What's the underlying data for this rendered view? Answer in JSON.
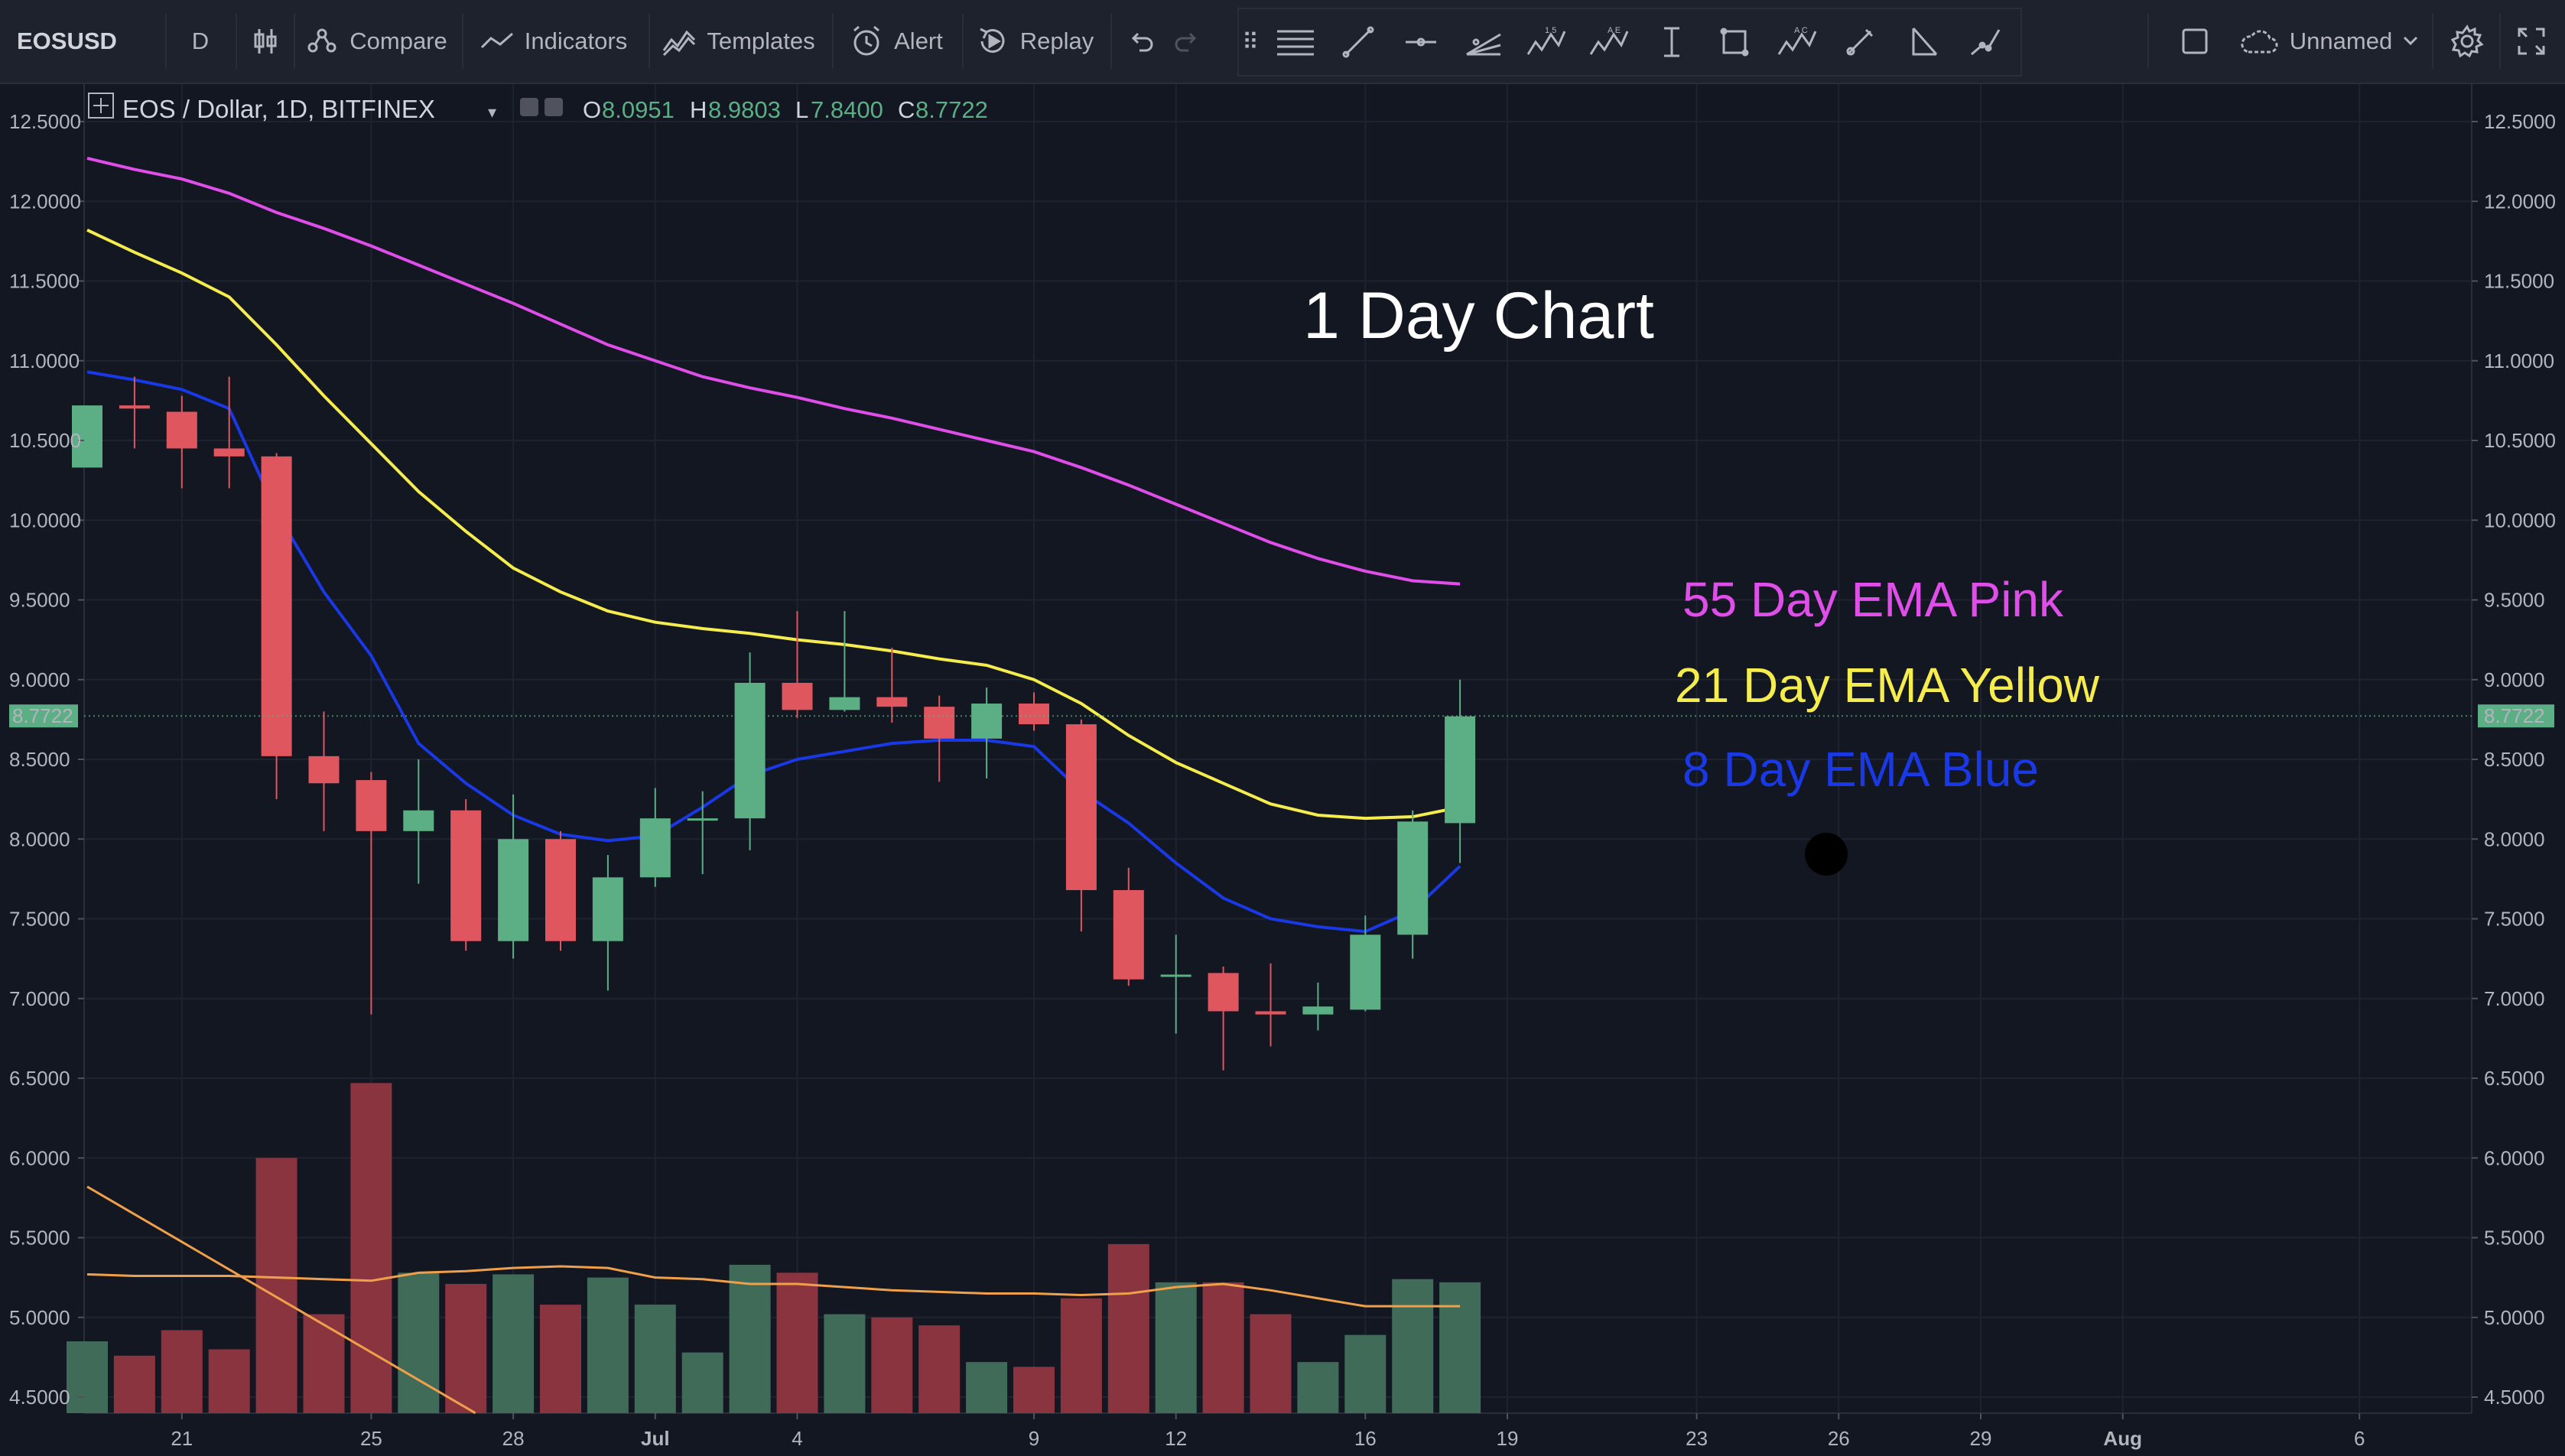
{
  "toolbar": {
    "symbol": "EOSUSD",
    "interval": "D",
    "compare_label": "Compare",
    "indicators_label": "Indicators",
    "templates_label": "Templates",
    "alert_label": "Alert",
    "replay_label": "Replay",
    "layout_name": "Unnamed"
  },
  "legend": {
    "symbol_text": "EOS / Dollar, 1D, BITFINEX",
    "open_label": "O",
    "open_value": "8.0951",
    "high_label": "H",
    "high_value": "8.9803",
    "low_label": "L",
    "low_value": "7.8400",
    "close_label": "C",
    "close_value": "8.7722"
  },
  "colors": {
    "up": "#5cae84",
    "down": "#e0565f",
    "vol_up": "#3f6b58",
    "vol_down": "#8a3440",
    "ema8": "#1a39e6",
    "ema21": "#f5ec4d",
    "ema55": "#df4ee8",
    "vol_ma": "#f0a04a",
    "price_tag": "#5cae84"
  },
  "annotations": {
    "title": "1 Day Chart",
    "ema55": "55 Day EMA Pink",
    "ema21": "21 Day EMA Yellow",
    "ema8": "8 Day EMA Blue"
  },
  "chart_data": {
    "type": "candlestick",
    "title": "1 Day Chart",
    "ylim": [
      4.4,
      12.7
    ],
    "y_ticks": [
      "12.5000",
      "12.0000",
      "11.5000",
      "11.0000",
      "10.5000",
      "10.0000",
      "9.5000",
      "9.0000",
      "8.5000",
      "8.0000",
      "7.5000",
      "7.0000",
      "6.5000",
      "6.0000",
      "5.5000",
      "5.0000",
      "4.5000"
    ],
    "current_price": "8.7722",
    "x_tick_labels": [
      {
        "label": "21",
        "day": 2
      },
      {
        "label": "25",
        "day": 6
      },
      {
        "label": "28",
        "day": 9
      },
      {
        "label": "Jul",
        "day": 12
      },
      {
        "label": "4",
        "day": 15
      },
      {
        "label": "9",
        "day": 20
      },
      {
        "label": "12",
        "day": 23
      },
      {
        "label": "16",
        "day": 27
      },
      {
        "label": "19",
        "day": 30
      },
      {
        "label": "23",
        "day": 34
      },
      {
        "label": "26",
        "day": 37
      },
      {
        "label": "29",
        "day": 40
      },
      {
        "label": "Aug",
        "day": 43
      },
      {
        "label": "6",
        "day": 48
      }
    ],
    "candles": [
      {
        "day": 0,
        "o": 10.33,
        "h": 10.72,
        "l": 10.33,
        "c": 10.72
      },
      {
        "day": 1,
        "o": 10.72,
        "h": 10.9,
        "l": 10.45,
        "c": 10.7
      },
      {
        "day": 2,
        "o": 10.68,
        "h": 10.78,
        "l": 10.2,
        "c": 10.45
      },
      {
        "day": 3,
        "o": 10.45,
        "h": 10.9,
        "l": 10.2,
        "c": 10.4
      },
      {
        "day": 4,
        "o": 10.4,
        "h": 10.42,
        "l": 8.25,
        "c": 8.52
      },
      {
        "day": 5,
        "o": 8.52,
        "h": 8.8,
        "l": 8.05,
        "c": 8.35
      },
      {
        "day": 6,
        "o": 8.37,
        "h": 8.42,
        "l": 6.9,
        "c": 8.05
      },
      {
        "day": 7,
        "o": 8.05,
        "h": 8.5,
        "l": 7.72,
        "c": 8.18
      },
      {
        "day": 8,
        "o": 8.18,
        "h": 8.25,
        "l": 7.3,
        "c": 7.36
      },
      {
        "day": 9,
        "o": 7.36,
        "h": 8.28,
        "l": 7.25,
        "c": 8.0
      },
      {
        "day": 10,
        "o": 8.0,
        "h": 8.05,
        "l": 7.3,
        "c": 7.36
      },
      {
        "day": 11,
        "o": 7.36,
        "h": 7.9,
        "l": 7.05,
        "c": 7.76
      },
      {
        "day": 12,
        "o": 7.76,
        "h": 8.32,
        "l": 7.7,
        "c": 8.13
      },
      {
        "day": 13,
        "o": 8.13,
        "h": 8.3,
        "l": 7.78,
        "c": 8.13
      },
      {
        "day": 14,
        "o": 8.13,
        "h": 9.17,
        "l": 7.93,
        "c": 8.98
      },
      {
        "day": 15,
        "o": 8.98,
        "h": 9.43,
        "l": 8.76,
        "c": 8.81
      },
      {
        "day": 16,
        "o": 8.81,
        "h": 9.43,
        "l": 8.8,
        "c": 8.89
      },
      {
        "day": 17,
        "o": 8.89,
        "h": 9.2,
        "l": 8.73,
        "c": 8.83
      },
      {
        "day": 18,
        "o": 8.83,
        "h": 8.9,
        "l": 8.36,
        "c": 8.63
      },
      {
        "day": 19,
        "o": 8.63,
        "h": 8.95,
        "l": 8.38,
        "c": 8.85
      },
      {
        "day": 20,
        "o": 8.85,
        "h": 8.92,
        "l": 8.68,
        "c": 8.72
      },
      {
        "day": 21,
        "o": 8.72,
        "h": 8.75,
        "l": 7.42,
        "c": 7.68
      },
      {
        "day": 22,
        "o": 7.68,
        "h": 7.82,
        "l": 7.08,
        "c": 7.12
      },
      {
        "day": 23,
        "o": 7.14,
        "h": 7.4,
        "l": 6.78,
        "c": 7.15
      },
      {
        "day": 24,
        "o": 7.16,
        "h": 7.2,
        "l": 6.55,
        "c": 6.92
      },
      {
        "day": 25,
        "o": 6.92,
        "h": 7.22,
        "l": 6.7,
        "c": 6.9
      },
      {
        "day": 26,
        "o": 6.9,
        "h": 7.1,
        "l": 6.8,
        "c": 6.95
      },
      {
        "day": 27,
        "o": 6.93,
        "h": 7.52,
        "l": 6.92,
        "c": 7.4
      },
      {
        "day": 28,
        "o": 7.4,
        "h": 8.18,
        "l": 7.25,
        "c": 8.11
      },
      {
        "day": 29,
        "o": 8.1,
        "h": 9.0,
        "l": 7.85,
        "c": 8.77
      }
    ],
    "ema8": [
      10.93,
      10.88,
      10.82,
      10.7,
      10.05,
      9.55,
      9.15,
      8.6,
      8.35,
      8.15,
      8.03,
      7.99,
      8.02,
      8.2,
      8.4,
      8.5,
      8.55,
      8.6,
      8.62,
      8.62,
      8.58,
      8.3,
      8.1,
      7.85,
      7.63,
      7.5,
      7.45,
      7.42,
      7.55,
      7.83
    ],
    "ema21": [
      11.82,
      11.68,
      11.55,
      11.4,
      11.1,
      10.78,
      10.48,
      10.18,
      9.93,
      9.7,
      9.55,
      9.43,
      9.36,
      9.32,
      9.29,
      9.25,
      9.22,
      9.18,
      9.13,
      9.09,
      9.0,
      8.85,
      8.65,
      8.48,
      8.35,
      8.22,
      8.15,
      8.13,
      8.14,
      8.2
    ],
    "ema55": [
      12.27,
      12.2,
      12.14,
      12.05,
      11.93,
      11.83,
      11.72,
      11.6,
      11.48,
      11.36,
      11.23,
      11.1,
      11.0,
      10.9,
      10.83,
      10.77,
      10.7,
      10.64,
      10.57,
      10.5,
      10.43,
      10.33,
      10.22,
      10.1,
      9.98,
      9.86,
      9.76,
      9.68,
      9.62,
      9.6
    ],
    "volume": [
      4.85,
      4.76,
      4.92,
      4.8,
      6.0,
      5.02,
      6.47,
      5.28,
      5.21,
      5.27,
      5.08,
      5.25,
      5.08,
      4.78,
      5.33,
      5.28,
      5.02,
      5.0,
      4.95,
      4.72,
      4.69,
      5.12,
      5.46,
      5.22,
      5.22,
      5.02,
      4.72,
      4.89,
      5.24,
      5.22
    ],
    "volume_ma": [
      5.27,
      5.26,
      5.26,
      5.26,
      5.25,
      5.24,
      5.23,
      5.28,
      5.29,
      5.31,
      5.32,
      5.31,
      5.25,
      5.24,
      5.21,
      5.21,
      5.19,
      5.17,
      5.16,
      5.15,
      5.15,
      5.14,
      5.15,
      5.19,
      5.21,
      5.17,
      5.12,
      5.07,
      5.07,
      5.07
    ],
    "volume_trend_start": {
      "day": 0,
      "value": 5.82
    },
    "volume_trend_end": {
      "day": 8.2,
      "value": 4.4
    }
  }
}
